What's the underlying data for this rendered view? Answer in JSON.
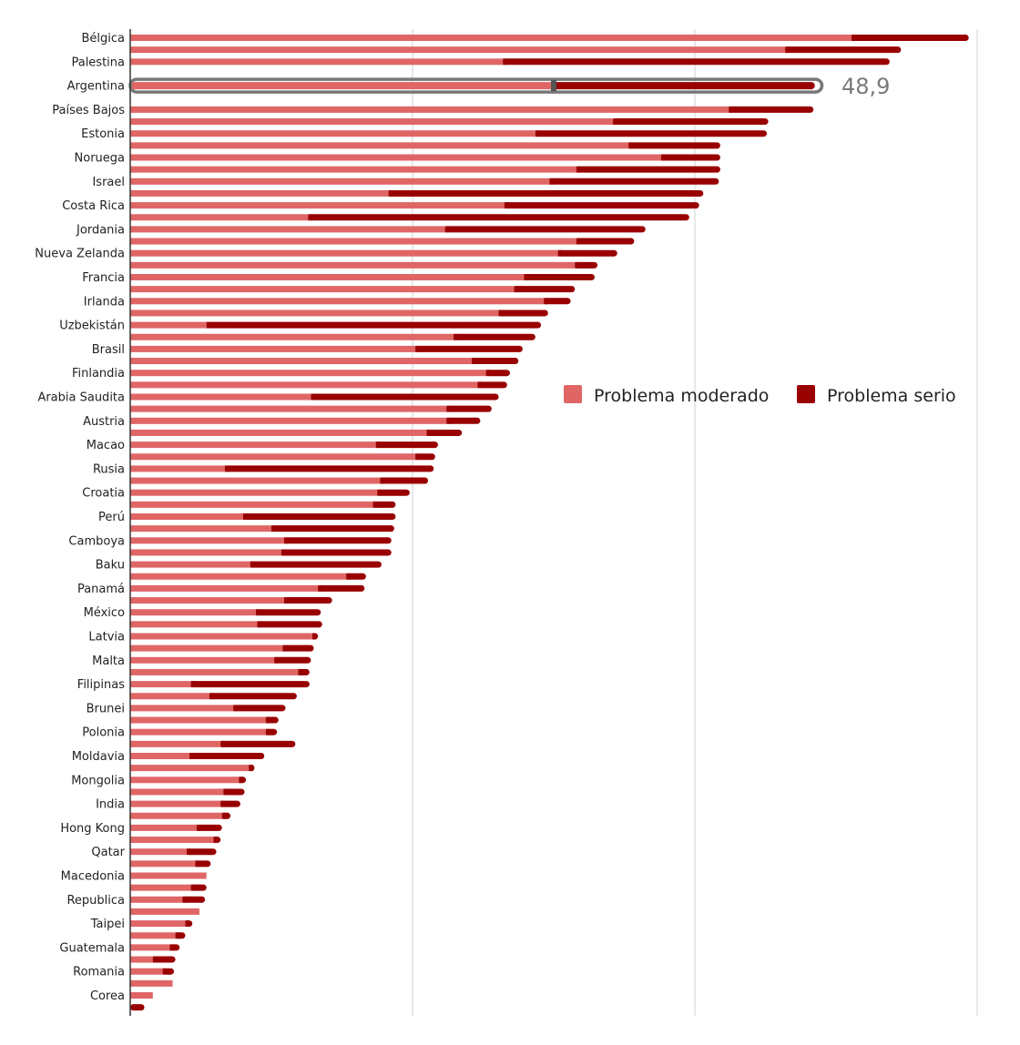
{
  "chart_data": {
    "type": "bar",
    "orientation": "horizontal",
    "stacked": true,
    "grid": true,
    "legend_position": "right",
    "xlim": [
      0,
      60
    ],
    "legend": [
      {
        "name": "Problema moderado",
        "color": "#e06666"
      },
      {
        "name": "Problema serio",
        "color": "#990000"
      }
    ],
    "highlight": {
      "category": "Argentina",
      "value_label": "48,9"
    },
    "categories": [
      "Bélgica",
      "",
      "Palestina",
      "",
      "Argentina",
      "",
      "Países Bajos",
      "",
      "Estonia",
      "",
      "Noruega",
      "",
      "Israel",
      "",
      "Costa Rica",
      "",
      "Jordania",
      "",
      "Nueva Zelanda",
      "",
      "Francia",
      "",
      "Irlanda",
      "",
      "Uzbekistán",
      "",
      "Brasil",
      "",
      "Finlandia",
      "",
      "Arabia Saudita",
      "",
      "Austria",
      "",
      "Macao",
      "",
      "Rusia",
      "",
      "Croatia",
      "",
      "Perú",
      "",
      "Camboya",
      "",
      "Baku",
      "",
      "Panamá",
      "",
      "México",
      "",
      "Latvia",
      "",
      "Malta",
      "",
      "Filipinas",
      "",
      "Brunei",
      "",
      "Polonia",
      "",
      "Moldavia",
      "",
      "Mongolia",
      "",
      "India",
      "",
      "Hong Kong",
      "",
      "Qatar",
      "",
      "Macedonia",
      "",
      "Republica",
      "",
      "Taipei",
      "",
      "Guatemala",
      "",
      "Romania",
      "",
      "Corea",
      ""
    ],
    "series": [
      {
        "name": "Problema moderado",
        "color": "#e06666",
        "values": [
          51.1,
          46.4,
          26.4,
          0,
          30.0,
          0,
          42.4,
          34.2,
          28.7,
          35.3,
          37.6,
          31.6,
          29.7,
          18.3,
          26.5,
          12.6,
          22.3,
          31.6,
          30.3,
          31.5,
          27.9,
          27.2,
          29.3,
          26.1,
          5.4,
          22.9,
          20.2,
          24.2,
          25.2,
          24.6,
          12.8,
          22.4,
          22.4,
          21.0,
          17.4,
          20.2,
          6.7,
          17.7,
          17.5,
          17.2,
          8.0,
          10.0,
          10.9,
          10.7,
          8.5,
          15.3,
          13.3,
          10.9,
          8.9,
          9.0,
          12.9,
          10.8,
          10.2,
          11.9,
          4.3,
          5.6,
          7.3,
          9.6,
          9.6,
          6.4,
          4.2,
          8.4,
          7.7,
          6.6,
          6.4,
          6.5,
          4.7,
          5.9,
          4.0,
          4.6,
          5.4,
          4.3,
          3.7,
          4.9,
          3.9,
          3.2,
          2.8,
          1.6,
          2.3,
          3.0,
          1.6,
          0
        ]
      },
      {
        "name": "Problema serio",
        "color": "#990000",
        "values": [
          8.3,
          8.2,
          27.4,
          0,
          18.9,
          0,
          6.0,
          11.0,
          16.4,
          6.5,
          4.2,
          10.2,
          12.0,
          22.3,
          13.8,
          27.0,
          14.2,
          4.1,
          4.2,
          1.6,
          5.0,
          4.3,
          1.9,
          3.5,
          23.7,
          5.8,
          7.6,
          3.3,
          1.7,
          2.1,
          13.3,
          3.2,
          2.4,
          2.5,
          4.4,
          1.4,
          14.8,
          3.4,
          2.3,
          1.6,
          10.8,
          8.7,
          7.6,
          7.8,
          9.3,
          1.4,
          3.3,
          3.4,
          4.6,
          4.6,
          0.4,
          2.2,
          2.6,
          0.8,
          8.4,
          6.2,
          3.7,
          0.9,
          0.8,
          5.3,
          5.3,
          0.4,
          0.5,
          1.5,
          1.4,
          0.6,
          1.8,
          0.5,
          2.1,
          1.1,
          0,
          1.1,
          1.6,
          0,
          0.5,
          0.7,
          0.7,
          1.6,
          0.8,
          0,
          0,
          1.0
        ]
      }
    ]
  }
}
